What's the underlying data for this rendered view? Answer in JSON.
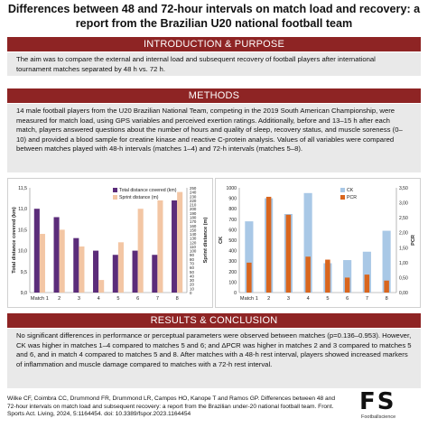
{
  "title": "Differences between 48 and 72-hour intervals on match load and recovery: a report from the Brazilian U20 national football team",
  "sections": {
    "intro_heading": "INTRODUCTION & PURPOSE",
    "intro_text": "The aim was to compare the external and internal load and subsequent recovery of football players after international tournament matches separated by 48 h vs. 72 h.",
    "methods_heading": "METHODS",
    "methods_text": "14 male football players from the U20 Brazilian National Team, competing in the 2019 South American Championship, were measured for match load, using GPS variables and perceived exertion ratings. Additionally, before and 13–15 h after each match, players answered questions about the number of hours and quality of sleep, recovery status, and muscle soreness (0–10) and provided a blood sample for creatine kinase and reactive C-protein analysis. Values of all variables were compared between matches played with 48-h intervals (matches 1–4) and 72-h intervals (matches 5–8).",
    "results_heading": "RESULTS & CONCLUSION",
    "results_text": "No significant differences in performance or perceptual parameters were observed between matches (p=0.136–0.953). However, CK was higher in matches 1–4 compared to matches 5 and 6; and ΔPCR was higher in matches 2 and 3 compared to matches 5 and 6, and in match 4 compared to matches 5 and 8. After matches with a 48-h rest interval, players showed increased markers of inflammation and muscle damage compared to matches with a 72-h rest interval."
  },
  "footer": {
    "citation": "Wilke CF, Coimbra CC, Drummond FR, Drummond LR, Campos HO, Kanope T and Ramos GP. Differences between 48 and 72-hour intervals on match load and subsequent recovery: a report from the Brazilian under-20 national football team. Front. Sports Act. Living, 2024, 5:1164454. doi: 10.3389/fspor.2023.1164454"
  },
  "logo": {
    "mark": "FS",
    "subtitle": "Footballscience"
  },
  "colors": {
    "banner": "#8e2424",
    "text_bg": "#e9e9e9",
    "total_distance": "#5b2c7a",
    "sprint_distance": "#f3c6a4",
    "ck": "#a9c8e6",
    "pcr": "#d9661e"
  },
  "chart_data": [
    {
      "type": "bar",
      "categories": [
        "Match 1",
        "2",
        "3",
        "4",
        "5",
        "6",
        "7",
        "8"
      ],
      "series": [
        {
          "name": "Total distance covered (km)",
          "axis": "left",
          "values": [
            11.0,
            10.8,
            10.3,
            10.0,
            9.9,
            10.0,
            9.9,
            11.2
          ]
        },
        {
          "name": "Sprint distance (m)",
          "axis": "right",
          "values": [
            140,
            150,
            110,
            30,
            120,
            200,
            220,
            240
          ]
        }
      ],
      "ylabel": "Total distance covered (km)",
      "y2label": "Sprint distance (m)",
      "ylim": [
        9.0,
        11.5
      ],
      "y2lim": [
        0,
        250
      ],
      "yticks": [
        "9,0",
        "9,5",
        "10,0",
        "10,5",
        "11,0",
        "11,5"
      ],
      "y2ticks": [
        "0",
        "10",
        "20",
        "30",
        "40",
        "50",
        "60",
        "70",
        "80",
        "90",
        "100",
        "110",
        "120",
        "130",
        "140",
        "150",
        "160",
        "170",
        "180",
        "190",
        "200",
        "210",
        "220",
        "230",
        "240",
        "250"
      ],
      "legend": "top-right"
    },
    {
      "type": "bar",
      "categories": [
        "Match 1",
        "2",
        "3",
        "4",
        "5",
        "6",
        "7",
        "8"
      ],
      "series": [
        {
          "name": "CK",
          "axis": "left",
          "values": [
            680,
            900,
            750,
            950,
            280,
            310,
            390,
            590
          ]
        },
        {
          "name": "PCR",
          "axis": "right",
          "values": [
            1.0,
            3.2,
            2.6,
            1.2,
            1.1,
            0.5,
            0.6,
            0.4
          ]
        }
      ],
      "ylabel": "CK",
      "y2label": "PCR",
      "ylim": [
        0,
        1000
      ],
      "y2lim": [
        0,
        3.5
      ],
      "yticks": [
        "0",
        "100",
        "200",
        "300",
        "400",
        "500",
        "600",
        "700",
        "800",
        "900",
        "1000"
      ],
      "y2ticks": [
        "0,00",
        "0,50",
        "1,00",
        "1,50",
        "2,00",
        "2,50",
        "3,00",
        "3,50"
      ],
      "legend": "top-right"
    }
  ]
}
